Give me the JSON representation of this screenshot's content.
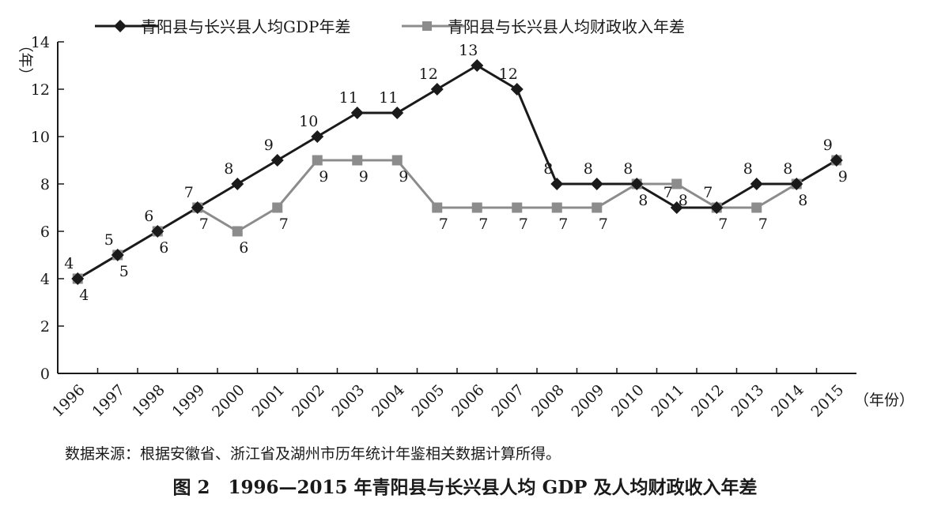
{
  "chart_data": {
    "type": "line",
    "x": [
      "1996",
      "1997",
      "1998",
      "1999",
      "2000",
      "2001",
      "2002",
      "2003",
      "2004",
      "2005",
      "2006",
      "2007",
      "2008",
      "2009",
      "2010",
      "2011",
      "2012",
      "2013",
      "2014",
      "2015"
    ],
    "series": [
      {
        "name": "青阳县与长兴县人均GDP年差",
        "marker": "diamond",
        "color": "#1a1a1a",
        "values": [
          4,
          5,
          6,
          7,
          8,
          9,
          10,
          11,
          11,
          12,
          13,
          12,
          8,
          8,
          8,
          7,
          7,
          8,
          8,
          9
        ]
      },
      {
        "name": "青阳县与长兴县人均财政收入年差",
        "marker": "square",
        "color": "#8c8c8c",
        "values": [
          4,
          5,
          6,
          7,
          6,
          7,
          9,
          9,
          9,
          7,
          7,
          7,
          7,
          7,
          8,
          8,
          7,
          7,
          8,
          9
        ]
      }
    ],
    "ylim": [
      0,
      14
    ],
    "yticks": [
      "0",
      "2",
      "4",
      "6",
      "8",
      "10",
      "12",
      "14"
    ],
    "ylabel": "（年）",
    "xlabel": "（年份）",
    "legend_position": "top"
  },
  "source_note": "数据来源：根据安徽省、浙江省及湖州市历年统计年鉴相关数据计算所得。",
  "caption": "图 2　1996—2015 年青阳县与长兴县人均 GDP 及人均财政收入年差"
}
